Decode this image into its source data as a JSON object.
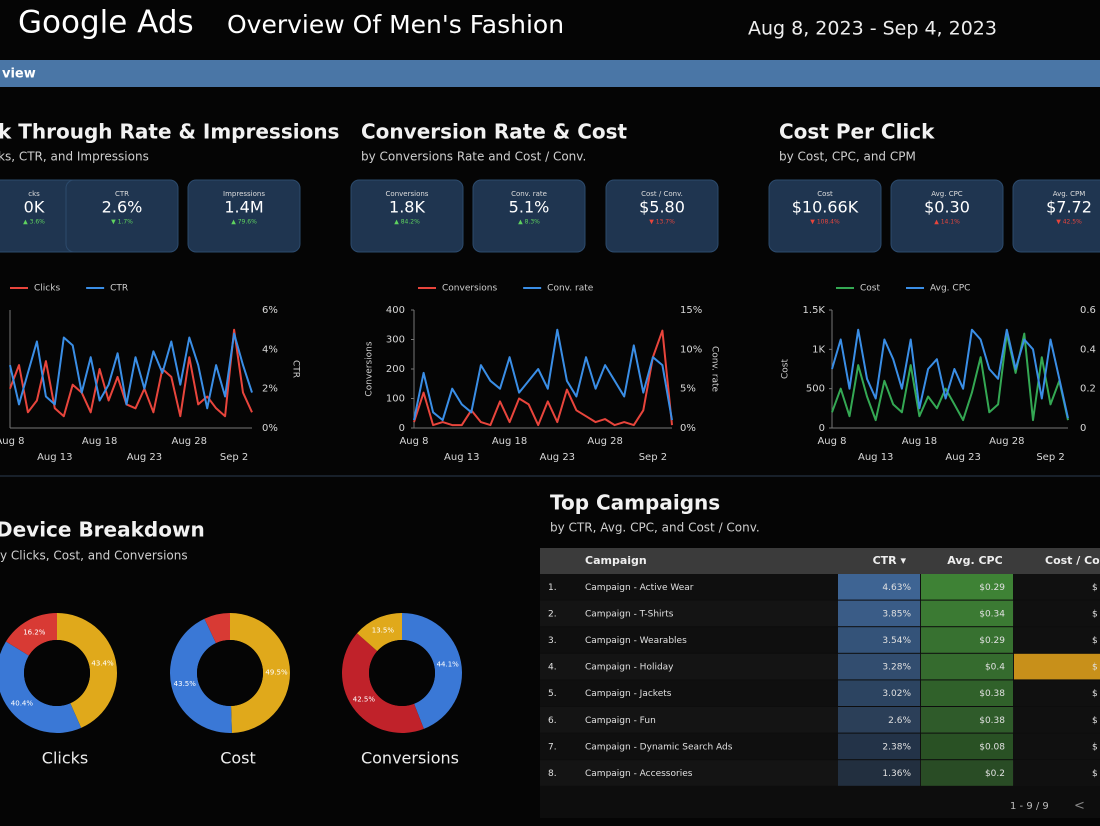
{
  "header": {
    "brand": "Google Ads",
    "title": "Overview Of Men's Fashion",
    "date_range": "Aug 8, 2023 - Sep 4, 2023"
  },
  "section_bar": "view",
  "chart_data": [
    {
      "type": "line",
      "title": "k Through Rate & Impressions",
      "subtitle": "ks, CTR, and Impressions",
      "kpis": [
        {
          "label": "cks",
          "value": "0K",
          "delta": "▲ 3.6%",
          "delta_color": "#5fd35f"
        },
        {
          "label": "CTR",
          "value": "2.6%",
          "delta": "▼ 1.7%",
          "delta_color": "#5fd35f"
        },
        {
          "label": "Impressions",
          "value": "1.4M",
          "delta": "▲ 79.6%",
          "delta_color": "#5fd35f"
        }
      ],
      "categories": [
        "Aug 8",
        null,
        null,
        null,
        null,
        "Aug 13",
        null,
        null,
        null,
        null,
        "Aug 18",
        null,
        null,
        null,
        null,
        "Aug 23",
        null,
        null,
        null,
        null,
        "Aug 28",
        null,
        null,
        null,
        null,
        "Sep 2",
        null,
        null
      ],
      "ylim": [
        0,
        600
      ],
      "y2label": "CTR",
      "y2lim": [
        0,
        6
      ],
      "y2ticks": [
        {
          "value": 0,
          "label": "0%"
        },
        {
          "value": 2,
          "label": "2%"
        },
        {
          "value": 4,
          "label": "4%"
        },
        {
          "value": 6,
          "label": "6%"
        }
      ],
      "series": [
        {
          "name": "Clicks",
          "color": "#e8453c",
          "values": [
            200,
            320,
            80,
            140,
            340,
            100,
            60,
            220,
            180,
            80,
            300,
            140,
            260,
            120,
            100,
            200,
            80,
            300,
            260,
            60,
            360,
            120,
            160,
            100,
            60,
            500,
            180,
            80
          ]
        },
        {
          "name": "CTR",
          "color": "#3a8ee6",
          "axis": "y2",
          "values": [
            3.2,
            1.2,
            2.8,
            4.4,
            1.6,
            1.2,
            4.6,
            4.2,
            1.8,
            3.6,
            1.4,
            2.2,
            3.8,
            1.2,
            3.6,
            2.0,
            3.9,
            2.8,
            4.4,
            2.2,
            4.6,
            3.2,
            1.0,
            3.2,
            1.6,
            4.8,
            3.2,
            1.8
          ]
        }
      ]
    },
    {
      "type": "line",
      "title": "Conversion Rate & Cost",
      "subtitle": "by Conversions Rate and Cost / Conv.",
      "kpis": [
        {
          "label": "Conversions",
          "value": "1.8K",
          "delta": "▲ 84.2%",
          "delta_color": "#5fd35f"
        },
        {
          "label": "Conv. rate",
          "value": "5.1%",
          "delta": "▲ 8.3%",
          "delta_color": "#5fd35f"
        },
        {
          "label": "Cost / Conv.",
          "value": "$5.80",
          "delta": "▼ 13.7%",
          "delta_color": "#e8453c"
        }
      ],
      "categories": [
        "Aug 8",
        null,
        null,
        null,
        null,
        "Aug 13",
        null,
        null,
        null,
        null,
        "Aug 18",
        null,
        null,
        null,
        null,
        "Aug 23",
        null,
        null,
        null,
        null,
        "Aug 28",
        null,
        null,
        null,
        null,
        "Sep 2",
        null,
        null
      ],
      "ylabel": "Conversions",
      "ylim": [
        0,
        400
      ],
      "yticks": [
        0,
        100,
        200,
        300,
        400
      ],
      "y2label": "Conv. rate",
      "y2lim": [
        0,
        15
      ],
      "y2ticks": [
        {
          "value": 0,
          "label": "0%"
        },
        {
          "value": 5,
          "label": "5%"
        },
        {
          "value": 10,
          "label": "10%"
        },
        {
          "value": 15,
          "label": "15%"
        }
      ],
      "series": [
        {
          "name": "Conversions",
          "color": "#e8453c",
          "values": [
            20,
            120,
            10,
            20,
            10,
            10,
            60,
            20,
            10,
            90,
            20,
            100,
            80,
            10,
            90,
            20,
            130,
            60,
            40,
            20,
            30,
            10,
            20,
            10,
            60,
            240,
            330,
            10
          ]
        },
        {
          "name": "Conv. rate",
          "color": "#3a8ee6",
          "axis": "y2",
          "values": [
            1.0,
            7.0,
            2.0,
            1.0,
            5.0,
            3.0,
            2.0,
            8.0,
            6.0,
            5.0,
            9.0,
            4.5,
            6.0,
            7.5,
            5.0,
            12.5,
            6.0,
            4.0,
            9.0,
            5.0,
            8.0,
            6.0,
            4.0,
            10.5,
            4.5,
            9.0,
            8.0,
            1.0
          ]
        }
      ]
    },
    {
      "type": "line",
      "title": "Cost Per Click",
      "subtitle": "by Cost, CPC, and CPM",
      "kpis": [
        {
          "label": "Cost",
          "value": "$10.66K",
          "delta": "▼ 108.4%",
          "delta_color": "#e8453c"
        },
        {
          "label": "Avg. CPC",
          "value": "$0.30",
          "delta": "▲ 14.1%",
          "delta_color": "#e8453c"
        },
        {
          "label": "Avg. CPM",
          "value": "$7.72",
          "delta": "▼ 42.5%",
          "delta_color": "#e8453c"
        }
      ],
      "categories": [
        "Aug 8",
        null,
        null,
        null,
        null,
        "Aug 13",
        null,
        null,
        null,
        null,
        "Aug 18",
        null,
        null,
        null,
        null,
        "Aug 23",
        null,
        null,
        null,
        null,
        "Aug 28",
        null,
        null,
        null,
        null,
        "Sep 2",
        null,
        null
      ],
      "ylabel": "Cost",
      "ylim": [
        0,
        1500
      ],
      "yticks": [
        0,
        500,
        {
          "value": 1000,
          "label": "1K"
        },
        {
          "value": 1500,
          "label": "1.5K"
        }
      ],
      "y2lim": [
        0,
        0.6
      ],
      "y2ticks": [
        0,
        0.2,
        0.4,
        0.6
      ],
      "series": [
        {
          "name": "Cost",
          "color": "#34a853",
          "values": [
            200,
            500,
            150,
            800,
            400,
            100,
            600,
            300,
            200,
            800,
            150,
            400,
            250,
            500,
            300,
            100,
            450,
            900,
            200,
            300,
            1200,
            700,
            1200,
            100,
            900,
            300,
            600,
            100
          ]
        },
        {
          "name": "Avg. CPC",
          "color": "#3a8ee6",
          "axis": "y2",
          "values": [
            0.3,
            0.45,
            0.2,
            0.5,
            0.25,
            0.15,
            0.45,
            0.35,
            0.2,
            0.45,
            0.1,
            0.3,
            0.35,
            0.15,
            0.3,
            0.2,
            0.5,
            0.45,
            0.3,
            0.25,
            0.5,
            0.3,
            0.45,
            0.4,
            0.15,
            0.45,
            0.25,
            0.05
          ]
        }
      ]
    },
    {
      "type": "pie",
      "title": "Clicks",
      "values": [
        43.4,
        40.4,
        16.2
      ],
      "colors": [
        "#e0a91b",
        "#3a78d6",
        "#d83a34"
      ],
      "value_labels": [
        "43.4%",
        "40.4%",
        "16.2%"
      ]
    },
    {
      "type": "pie",
      "title": "Cost",
      "values": [
        49.5,
        43.5,
        7
      ],
      "colors": [
        "#e0a91b",
        "#3a78d6",
        "#d83a34"
      ],
      "value_labels": [
        "49.5%",
        "43.5%",
        null
      ]
    },
    {
      "type": "pie",
      "title": "Conversions",
      "values": [
        44.1,
        42.5,
        13.5
      ],
      "colors": [
        "#3a78d6",
        "#c0222a",
        "#e0a91b"
      ],
      "value_labels": [
        "44.1%",
        "42.5%",
        "13.5%"
      ]
    }
  ],
  "device_breakdown": {
    "title": "Device Breakdown",
    "subtitle": "y Clicks, Cost, and Conversions"
  },
  "table": {
    "title": "Top Campaigns",
    "subtitle": "by CTR, Avg. CPC, and Cost / Conv.",
    "columns": [
      "Campaign",
      "CTR ▾",
      "Avg. CPC",
      "Cost / Co"
    ],
    "rows": [
      [
        "1.",
        "Campaign - Active Wear",
        "4.63%",
        "$0.29",
        "$"
      ],
      [
        "2.",
        "Campaign - T-Shirts",
        "3.85%",
        "$0.34",
        "$"
      ],
      [
        "3.",
        "Campaign - Wearables",
        "3.54%",
        "$0.29",
        "$"
      ],
      [
        "4.",
        "Campaign - Holiday",
        "3.28%",
        "$0.4",
        "$"
      ],
      [
        "5.",
        "Campaign - Jackets",
        "3.02%",
        "$0.38",
        "$"
      ],
      [
        "6.",
        "Campaign - Fun",
        "2.6%",
        "$0.38",
        "$"
      ],
      [
        "7.",
        "Campaign - Dynamic Search Ads",
        "2.38%",
        "$0.08",
        "$"
      ],
      [
        "8.",
        "Campaign - Accessories",
        "1.36%",
        "$0.2",
        "$"
      ]
    ],
    "pagination": "1 - 9 / 9",
    "prev": "<"
  }
}
